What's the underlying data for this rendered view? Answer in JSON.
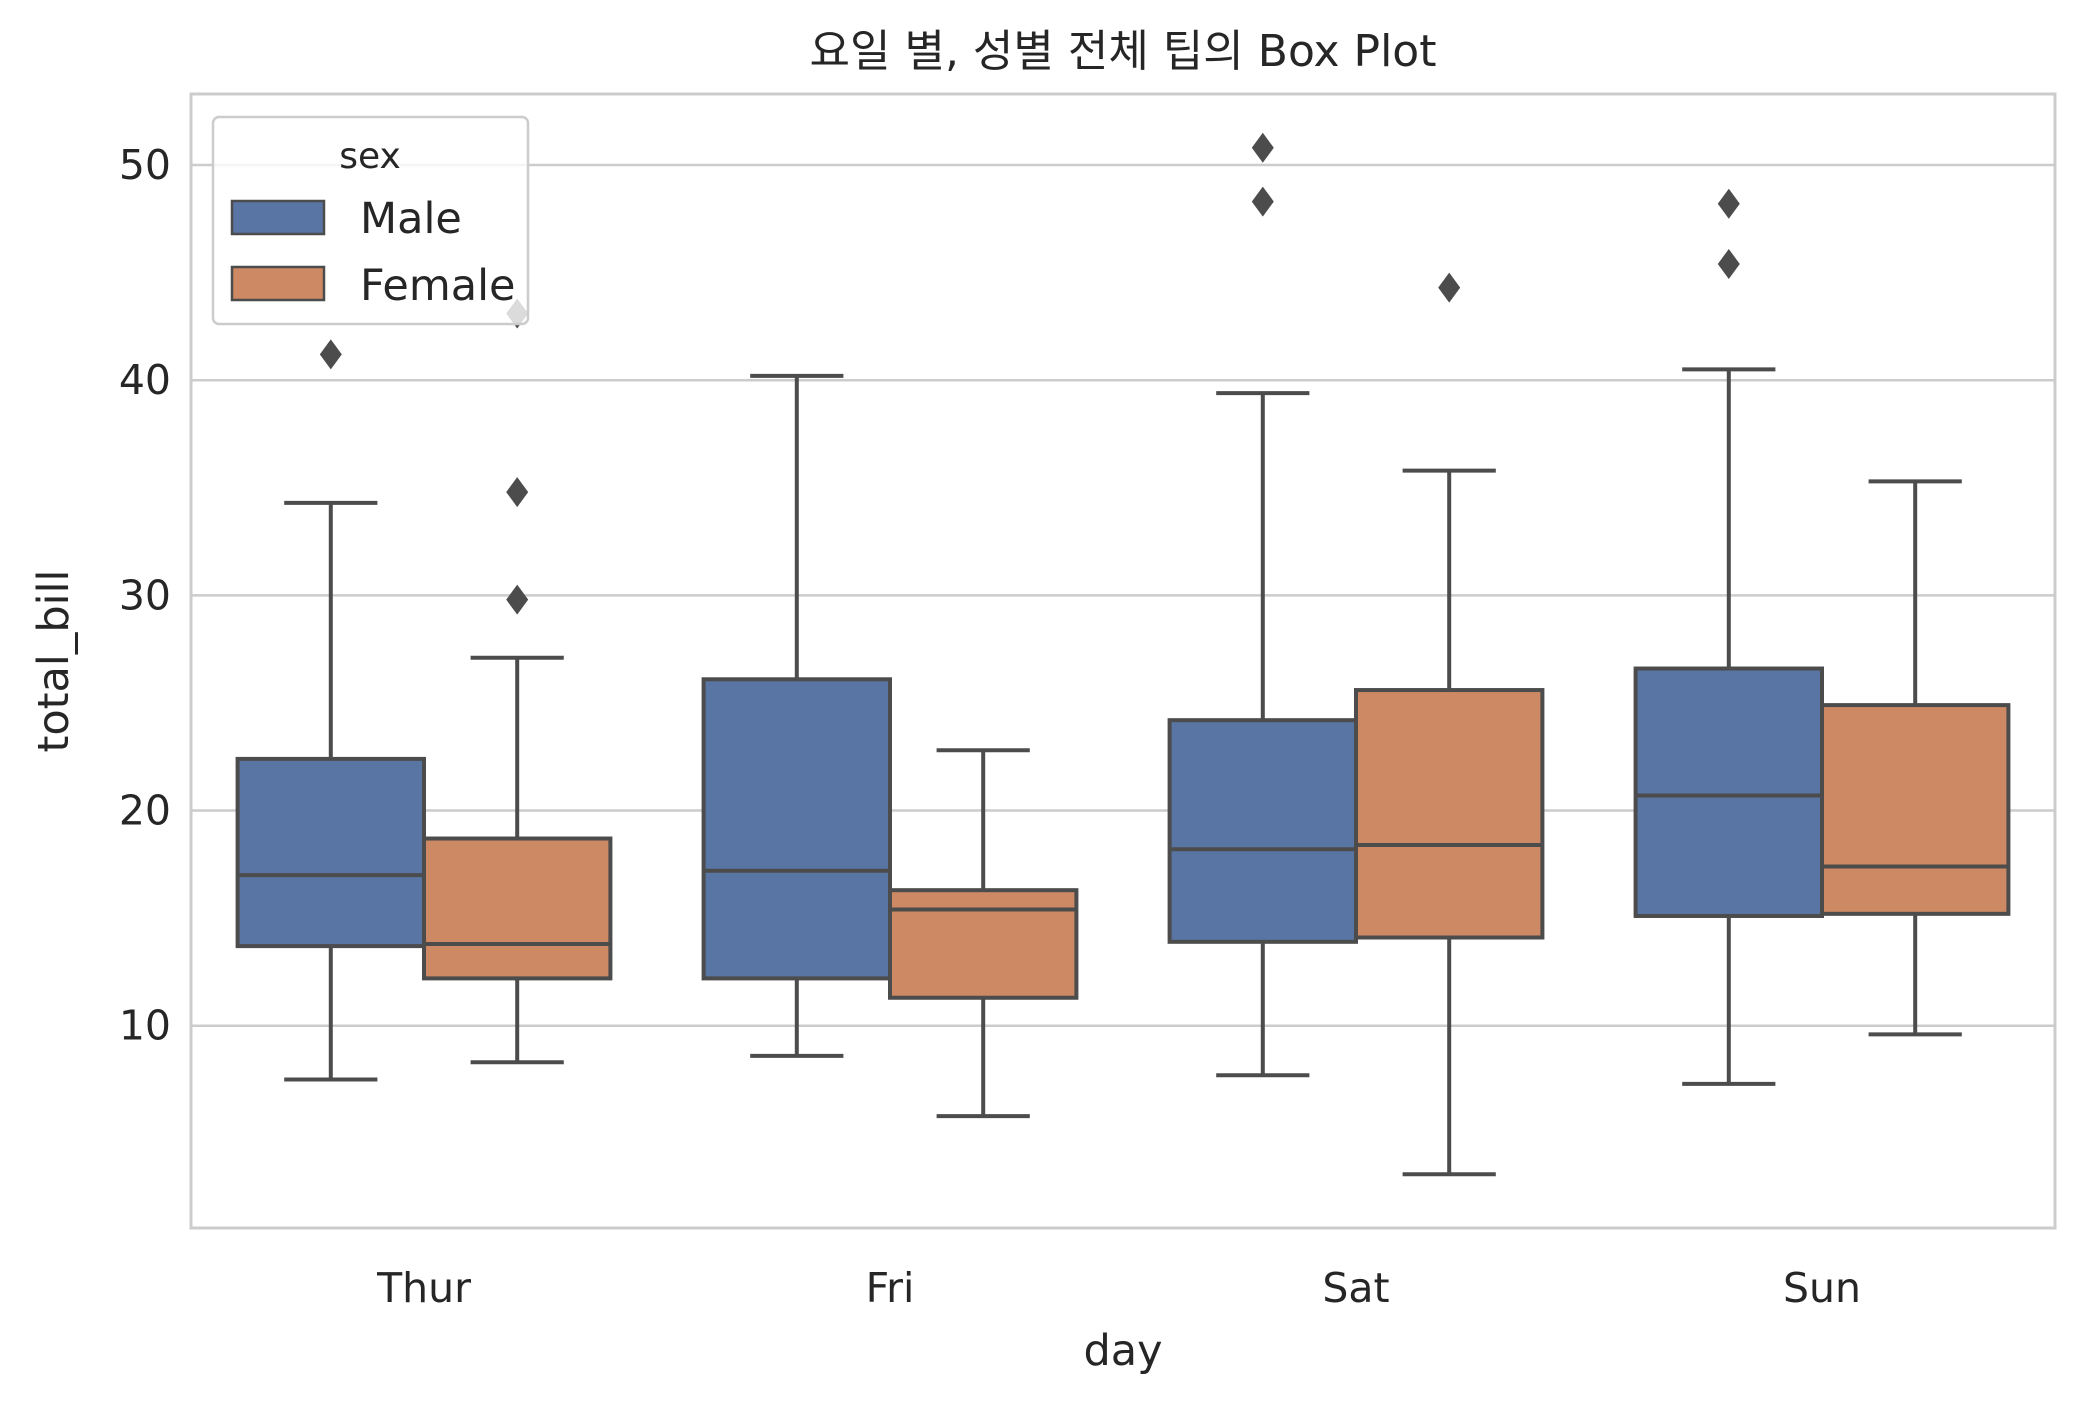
{
  "chart_data": {
    "type": "box",
    "title": "요일 별, 성별 전체 팁의 Box Plot",
    "xlabel": "day",
    "ylabel": "total_bill",
    "categories": [
      "Thur",
      "Fri",
      "Sat",
      "Sun"
    ],
    "ylim": [
      0.6,
      53.3
    ],
    "yticks": [
      10,
      20,
      30,
      40,
      50
    ],
    "grid": true,
    "legend": {
      "title": "sex",
      "position": "top-left"
    },
    "series": [
      {
        "name": "Male",
        "color": "#5875a4",
        "boxes": [
          {
            "category": "Thur",
            "whisker_low": 7.5,
            "q1": 13.7,
            "median": 17.0,
            "q3": 22.4,
            "whisker_high": 34.3,
            "outliers": [
              41.2
            ]
          },
          {
            "category": "Fri",
            "whisker_low": 8.6,
            "q1": 12.2,
            "median": 17.2,
            "q3": 26.1,
            "whisker_high": 40.2,
            "outliers": []
          },
          {
            "category": "Sat",
            "whisker_low": 7.7,
            "q1": 13.9,
            "median": 18.2,
            "q3": 24.2,
            "whisker_high": 39.4,
            "outliers": [
              48.3,
              50.8
            ]
          },
          {
            "category": "Sun",
            "whisker_low": 7.3,
            "q1": 15.1,
            "median": 20.7,
            "q3": 26.6,
            "whisker_high": 40.5,
            "outliers": [
              45.4,
              48.2
            ]
          }
        ]
      },
      {
        "name": "Female",
        "color": "#cc8963",
        "boxes": [
          {
            "category": "Thur",
            "whisker_low": 8.3,
            "q1": 12.2,
            "median": 13.8,
            "q3": 18.7,
            "whisker_high": 27.1,
            "outliers": [
              29.8,
              34.8,
              43.1
            ]
          },
          {
            "category": "Fri",
            "whisker_low": 5.8,
            "q1": 11.3,
            "median": 15.4,
            "q3": 16.3,
            "whisker_high": 22.8,
            "outliers": []
          },
          {
            "category": "Sat",
            "whisker_low": 3.1,
            "q1": 14.1,
            "median": 18.4,
            "q3": 25.6,
            "whisker_high": 35.8,
            "outliers": [
              44.3
            ]
          },
          {
            "category": "Sun",
            "whisker_low": 9.6,
            "q1": 15.2,
            "median": 17.4,
            "q3": 24.9,
            "whisker_high": 35.3,
            "outliers": []
          }
        ]
      }
    ]
  }
}
